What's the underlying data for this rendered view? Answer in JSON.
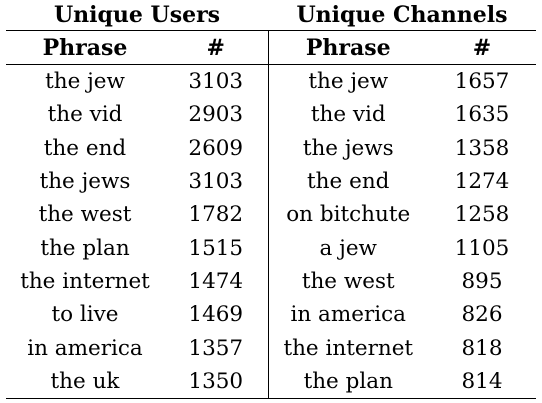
{
  "groups": {
    "left": "Unique Users",
    "right": "Unique Channels"
  },
  "headers": {
    "phrase": "Phrase",
    "count": "#"
  },
  "rows": [
    {
      "users_phrase": "the jew",
      "users_count": "3103",
      "channels_phrase": "the jew",
      "channels_count": "1657"
    },
    {
      "users_phrase": "the vid",
      "users_count": "2903",
      "channels_phrase": "the vid",
      "channels_count": "1635"
    },
    {
      "users_phrase": "the end",
      "users_count": "2609",
      "channels_phrase": "the jews",
      "channels_count": "1358"
    },
    {
      "users_phrase": "the jews",
      "users_count": "3103",
      "channels_phrase": "the end",
      "channels_count": "1274"
    },
    {
      "users_phrase": "the west",
      "users_count": "1782",
      "channels_phrase": "on bitchute",
      "channels_count": "1258"
    },
    {
      "users_phrase": "the plan",
      "users_count": "1515",
      "channels_phrase": "a jew",
      "channels_count": "1105"
    },
    {
      "users_phrase": "the internet",
      "users_count": "1474",
      "channels_phrase": "the west",
      "channels_count": "895"
    },
    {
      "users_phrase": "to live",
      "users_count": "1469",
      "channels_phrase": "in america",
      "channels_count": "826"
    },
    {
      "users_phrase": "in america",
      "users_count": "1357",
      "channels_phrase": "the internet",
      "channels_count": "818"
    },
    {
      "users_phrase": "the uk",
      "users_count": "1350",
      "channels_phrase": "the plan",
      "channels_count": "814"
    }
  ]
}
